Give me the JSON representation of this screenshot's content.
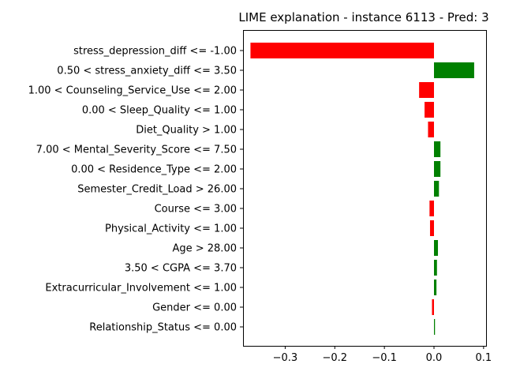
{
  "chart_data": {
    "type": "bar",
    "orientation": "horizontal",
    "title": "LIME explanation - instance 6113 - Pred: 3",
    "xlabel": "",
    "ylabel": "",
    "xlim": [
      -0.385,
      0.105
    ],
    "xticks": [
      -0.3,
      -0.2,
      -0.1,
      0.0,
      0.1
    ],
    "xtick_labels": [
      "−0.3",
      "−0.2",
      "−0.1",
      "0.0",
      "0.1"
    ],
    "grid": false,
    "colors": {
      "positive": "#008000",
      "negative": "#ff0000"
    },
    "categories": [
      "stress_depression_diff <= -1.00",
      "0.50 < stress_anxiety_diff <= 3.50",
      "1.00 < Counseling_Service_Use <= 2.00",
      "0.00 < Sleep_Quality <= 1.00",
      "Diet_Quality > 1.00",
      "7.00 < Mental_Severity_Score <= 7.50",
      "0.00 < Residence_Type <= 2.00",
      "Semester_Credit_Load > 26.00",
      "Course <= 3.00",
      "Physical_Activity <= 1.00",
      "Age > 28.00",
      "3.50 < CGPA <= 3.70",
      "Extracurricular_Involvement <= 1.00",
      "Gender <= 0.00",
      "Relationship_Status <= 0.00"
    ],
    "values": [
      -0.37,
      0.081,
      -0.03,
      -0.019,
      -0.012,
      0.013,
      0.013,
      0.01,
      -0.009,
      -0.008,
      0.008,
      0.006,
      0.005,
      -0.004,
      0.002
    ]
  }
}
